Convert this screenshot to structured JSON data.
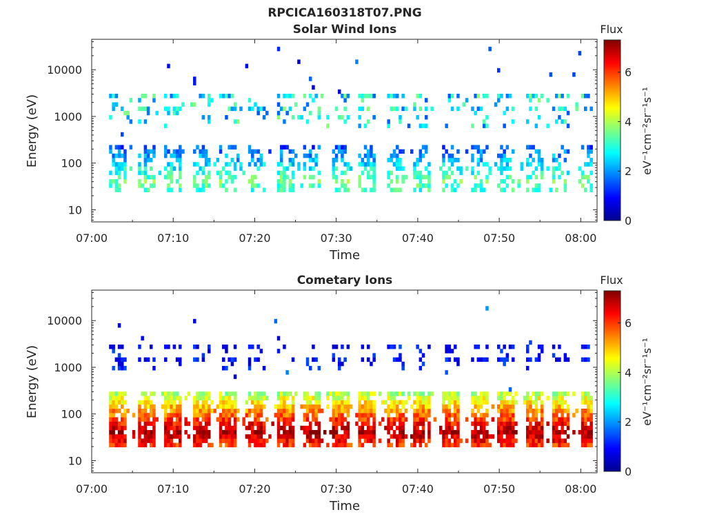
{
  "figure_title": "RPCICA160318T07.PNG",
  "chart_data": [
    {
      "type": "heatmap",
      "title": "Solar Wind Ions",
      "xlabel": "Time",
      "ylabel": "Energy (eV)",
      "x_tick_labels": [
        "07:00",
        "07:10",
        "07:20",
        "07:30",
        "07:40",
        "07:50",
        "08:00"
      ],
      "x_range_minutes": [
        0,
        62
      ],
      "y_scale": "log",
      "y_tick_labels": [
        "10",
        "100",
        "1000",
        "10000"
      ],
      "y_range": [
        5.5,
        45000
      ],
      "colorbar": {
        "title": "Flux",
        "label": "eV⁻¹cm⁻²sr⁻¹s⁻¹",
        "range": [
          0,
          7.3
        ],
        "tick_labels": [
          "0",
          "2",
          "4",
          "6"
        ]
      },
      "structure": {
        "sweep_period_minutes": 3.4,
        "low_band_eV": [
          25,
          250
        ],
        "low_band_flux": [
          0.5,
          3.5
        ],
        "mid_band_eV": [
          600,
          3200
        ],
        "mid_band_flux": [
          1.5,
          3.8
        ]
      }
    },
    {
      "type": "heatmap",
      "title": "Cometary Ions",
      "xlabel": "Time",
      "ylabel": "Energy (eV)",
      "x_tick_labels": [
        "07:00",
        "07:10",
        "07:20",
        "07:30",
        "07:40",
        "07:50",
        "08:00"
      ],
      "x_range_minutes": [
        0,
        62
      ],
      "y_scale": "log",
      "y_tick_labels": [
        "10",
        "100",
        "1000",
        "10000"
      ],
      "y_range": [
        5.5,
        45000
      ],
      "colorbar": {
        "title": "Flux",
        "label": "eV⁻¹cm⁻²sr⁻¹s⁻¹",
        "range": [
          0,
          7.3
        ],
        "tick_labels": [
          "0",
          "2",
          "4",
          "6"
        ]
      },
      "structure": {
        "sweep_period_minutes": 3.4,
        "low_band_eV": [
          20,
          320
        ],
        "low_band_flux": [
          3,
          7
        ],
        "mid_band_eV": [
          900,
          3200
        ],
        "mid_band_flux": [
          0.5,
          1.5
        ]
      }
    }
  ]
}
